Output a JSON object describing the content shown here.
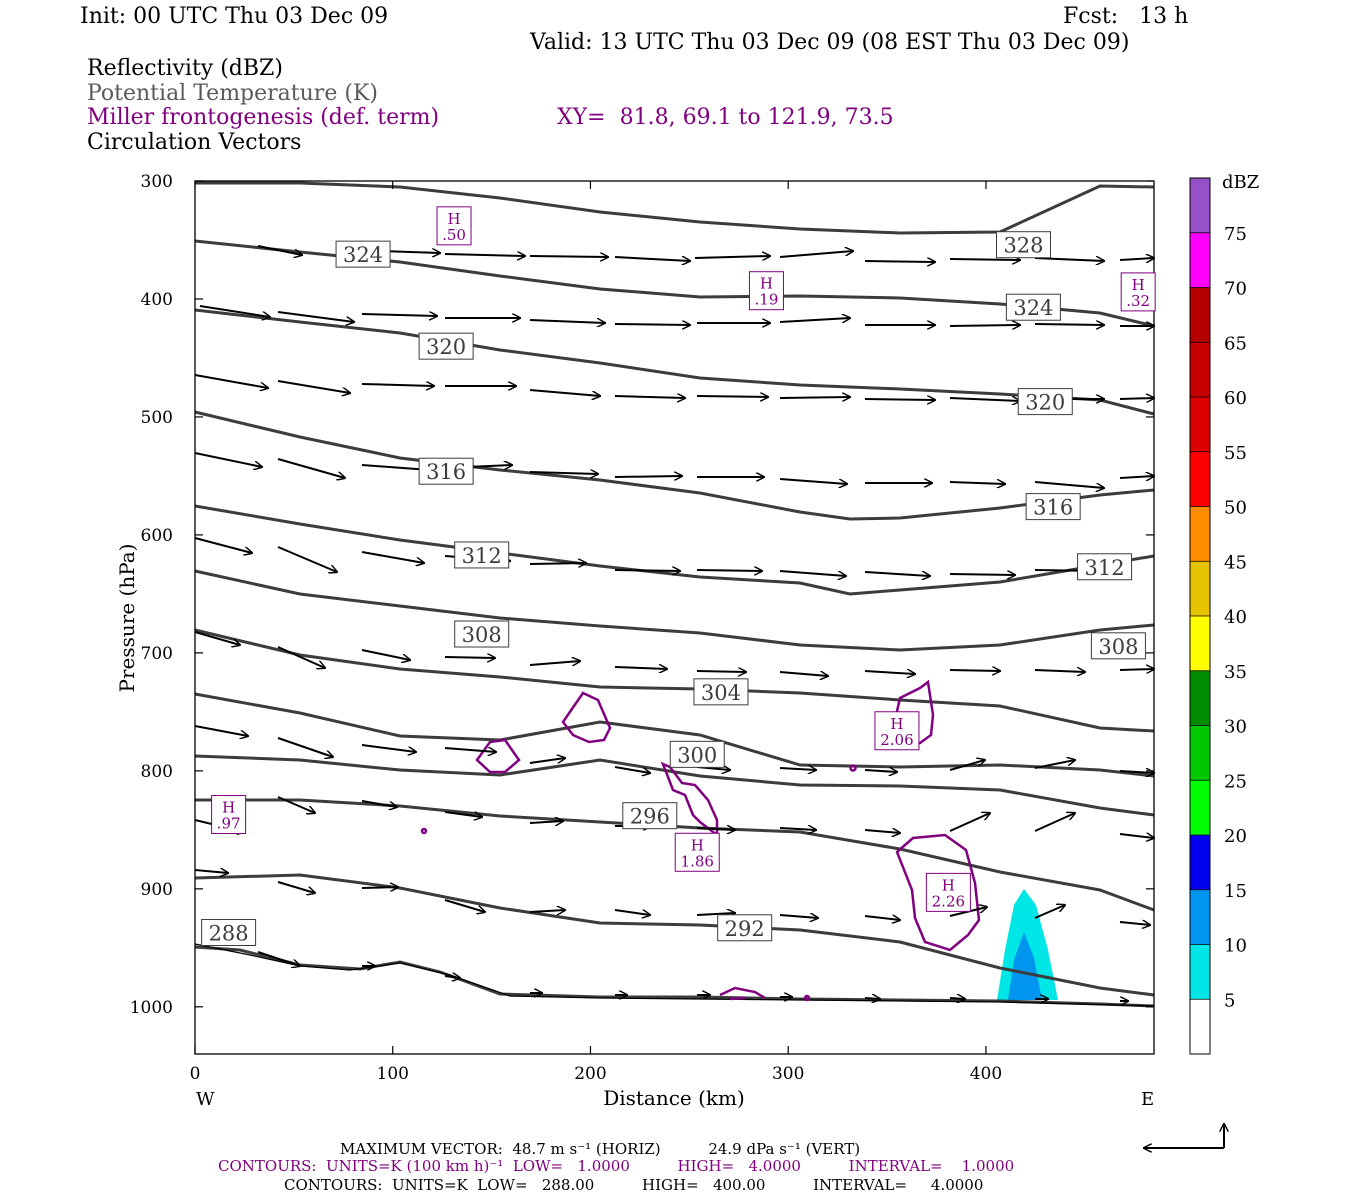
{
  "header": {
    "init": "Init: 00 UTC Thu 03 Dec 09",
    "fcst": "Fcst:   13 h",
    "valid": "Valid: 13 UTC Thu 03 Dec 09 (08 EST Thu 03 Dec 09)"
  },
  "legend_lines": {
    "reflectivity": "Reflectivity (dBZ)",
    "theta": "Potential Temperature (K)",
    "miller": "Miller frontogenesis (def. term)",
    "xy": "XY=  81.8, 69.1 to 121.9, 73.5",
    "circulation": "Circulation Vectors"
  },
  "footer": {
    "max_vector": "MAXIMUM VECTOR:  48.7 m s⁻¹ (HORIZ)          24.9 dPa s⁻¹ (VERT)",
    "contours_purple": "CONTOURS:  UNITS=K (100 km h)⁻¹  LOW=   1.0000          HIGH=   4.0000          INTERVAL=    1.0000",
    "contours_black": "CONTOURS:  UNITS=K  LOW=   288.00          HIGH=   400.00          INTERVAL=     4.0000"
  },
  "colors": {
    "theta": "#3c3c3c",
    "miller": "#800080",
    "dbz_5": "#00e5e5",
    "dbz_10": "#0096f0",
    "dbz_15": "#0000ee"
  },
  "chart_data": {
    "type": "cross-section",
    "xlabel": "Distance (km)",
    "ylabel": "Pressure (hPa)",
    "xlim": [
      0,
      485
    ],
    "ylim": [
      1040,
      300
    ],
    "x_ticks": [
      "0",
      "100",
      "200",
      "300",
      "400"
    ],
    "y_ticks": [
      "300",
      "400",
      "500",
      "600",
      "700",
      "800",
      "900",
      "1000"
    ],
    "x_end_labels": {
      "left": "W",
      "right": "E"
    },
    "colorbar": {
      "title": "dBZ",
      "levels": [
        "5",
        "10",
        "15",
        "20",
        "25",
        "30",
        "35",
        "40",
        "45",
        "50",
        "55",
        "60",
        "65",
        "70",
        "75"
      ],
      "colors": [
        "#00e5e5",
        "#0096f0",
        "#0000ee",
        "#00ff00",
        "#00c800",
        "#008c00",
        "#ffff00",
        "#e6c300",
        "#ff8c00",
        "#ff0000",
        "#dc0000",
        "#c80000",
        "#b40000",
        "#ff00ff",
        "#9650c8",
        "#ffffff"
      ]
    },
    "theta_contour_labels": [
      {
        "label": "328",
        "x": 419,
        "p": 354
      },
      {
        "label": "324",
        "x": 85,
        "p": 362
      },
      {
        "label": "324",
        "x": 424,
        "p": 407
      },
      {
        "label": "320",
        "x": 127,
        "p": 440
      },
      {
        "label": "320",
        "x": 430,
        "p": 487
      },
      {
        "label": "316",
        "x": 127,
        "p": 546
      },
      {
        "label": "316",
        "x": 434,
        "p": 576
      },
      {
        "label": "312",
        "x": 145,
        "p": 617
      },
      {
        "label": "312",
        "x": 460,
        "p": 627
      },
      {
        "label": "308",
        "x": 145,
        "p": 684
      },
      {
        "label": "308",
        "x": 467,
        "p": 694
      },
      {
        "label": "304",
        "x": 266,
        "p": 733
      },
      {
        "label": "300",
        "x": 254,
        "p": 786
      },
      {
        "label": "296",
        "x": 230,
        "p": 838
      },
      {
        "label": "292",
        "x": 278,
        "p": 933
      },
      {
        "label": "288",
        "x": 17,
        "p": 937
      }
    ],
    "frontogenesis_maxima": [
      {
        "label": "H",
        "value": ".50",
        "x": 131,
        "p": 338
      },
      {
        "label": "H",
        "value": ".19",
        "x": 289,
        "p": 393
      },
      {
        "label": "H",
        "value": ".32",
        "x": 477,
        "p": 394
      },
      {
        "label": "H",
        "value": "2.06",
        "x": 355,
        "p": 766
      },
      {
        "label": "H",
        "value": ".97",
        "x": 17,
        "p": 837
      },
      {
        "label": "H",
        "value": "1.86",
        "x": 254,
        "p": 869
      },
      {
        "label": "H",
        "value": "2.26",
        "x": 381,
        "p": 903
      }
    ]
  }
}
